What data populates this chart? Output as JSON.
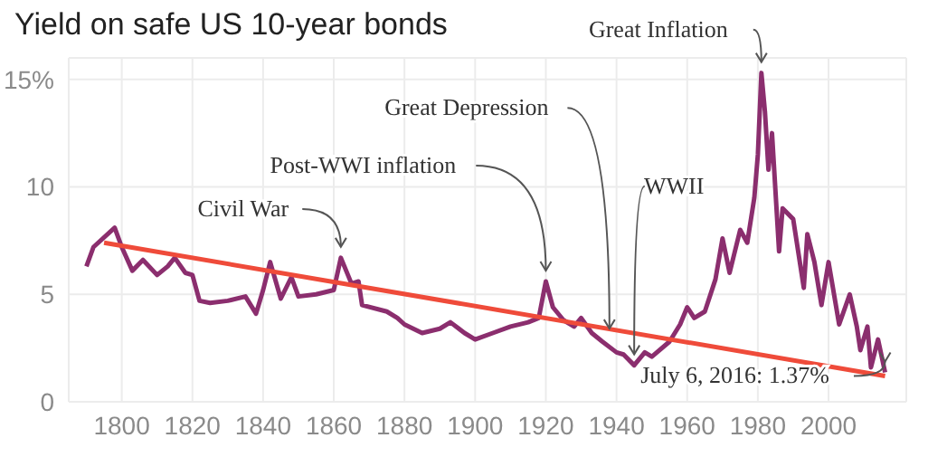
{
  "chart_data": {
    "type": "line",
    "title": "Yield on safe US 10-year bonds",
    "xlim": [
      1785,
      2022
    ],
    "xticks": [
      1800,
      1820,
      1840,
      1860,
      1880,
      1900,
      1920,
      1940,
      1960,
      1980,
      2000
    ],
    "ylim": [
      0,
      16
    ],
    "yticks": [
      0,
      5,
      10,
      {
        "value": 15,
        "label": "15%"
      }
    ],
    "grid": true,
    "marker": "none",
    "line_style": "solid",
    "series": [
      {
        "color": "#8b2e6e",
        "x": [
          1790,
          1792,
          1798,
          1800,
          1803,
          1806,
          1810,
          1813,
          1815,
          1818,
          1820,
          1822,
          1825,
          1830,
          1835,
          1838,
          1840,
          1842,
          1845,
          1848,
          1850,
          1855,
          1860,
          1862,
          1865,
          1867,
          1868,
          1875,
          1878,
          1880,
          1885,
          1890,
          1893,
          1897,
          1900,
          1905,
          1910,
          1915,
          1918,
          1920,
          1922,
          1925,
          1928,
          1930,
          1933,
          1936,
          1940,
          1942,
          1945,
          1948,
          1950,
          1955,
          1958,
          1960,
          1962,
          1965,
          1968,
          1970,
          1972,
          1975,
          1977,
          1979,
          1980,
          1981,
          1982,
          1983,
          1984,
          1986,
          1987,
          1990,
          1993,
          1994,
          1996,
          1998,
          2000,
          2003,
          2006,
          2008,
          2009,
          2011,
          2012,
          2014,
          2016
        ],
        "values": [
          6.3,
          7.2,
          8.1,
          7.2,
          6.1,
          6.6,
          5.9,
          6.3,
          6.7,
          6.0,
          5.9,
          4.7,
          4.6,
          4.7,
          4.9,
          4.1,
          5.2,
          6.5,
          4.8,
          5.8,
          4.9,
          5.0,
          5.2,
          6.7,
          5.5,
          5.6,
          4.5,
          4.2,
          3.9,
          3.6,
          3.2,
          3.4,
          3.7,
          3.2,
          2.9,
          3.2,
          3.5,
          3.7,
          3.9,
          5.6,
          4.4,
          3.8,
          3.5,
          3.9,
          3.2,
          2.8,
          2.3,
          2.2,
          1.7,
          2.3,
          2.1,
          2.8,
          3.6,
          4.4,
          3.9,
          4.2,
          5.7,
          7.6,
          6.0,
          8.0,
          7.4,
          9.5,
          11.5,
          15.3,
          13.5,
          10.8,
          12.5,
          7.0,
          9.0,
          8.5,
          5.3,
          7.8,
          6.5,
          4.5,
          6.5,
          3.6,
          5.0,
          3.5,
          2.4,
          3.5,
          1.6,
          2.9,
          1.37
        ]
      },
      {
        "type": "line",
        "color": "#ef4b3a",
        "x": [
          1795,
          2016
        ],
        "values": [
          7.4,
          1.2
        ]
      }
    ],
    "annotations": [
      {
        "text": "Civil War",
        "x": 1862,
        "y": 6.7
      },
      {
        "text": "Post-WWI inflation",
        "x": 1920,
        "y": 5.6
      },
      {
        "text": "Great Depression",
        "x": 1938,
        "y": 2.9
      },
      {
        "text": "WWII",
        "x": 1945,
        "y": 1.7
      },
      {
        "text": "Great Inflation",
        "x": 1981,
        "y": 15.3
      },
      {
        "text": "July 6, 2016: 1.37%",
        "x": 2016,
        "y": 1.37
      }
    ]
  }
}
